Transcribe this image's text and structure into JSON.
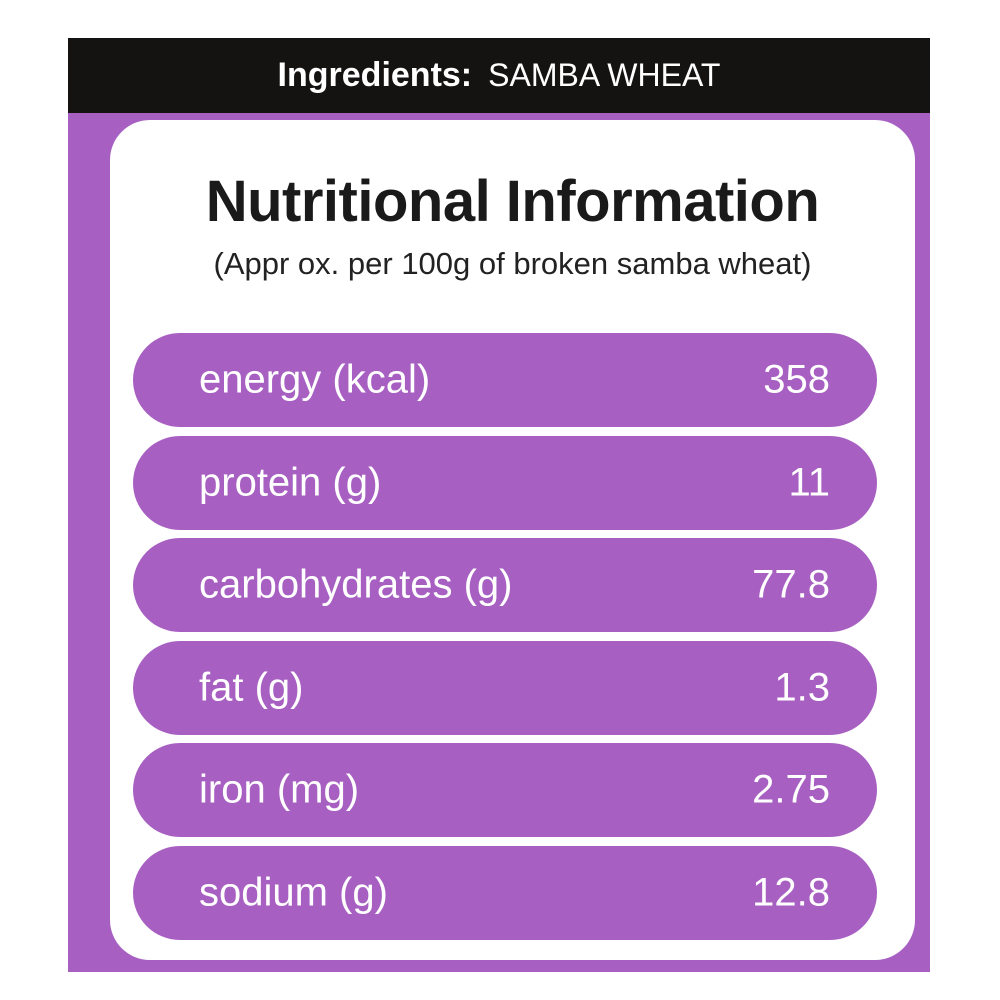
{
  "header": {
    "label": "Ingredients:",
    "value": "SAMBA WHEAT"
  },
  "title": "Nutritional Information",
  "subtitle": "(Appr ox. per 100g of broken samba wheat)",
  "table": {
    "rows": [
      [
        "energy (kcal)",
        "358"
      ],
      [
        "protein (g)",
        "11"
      ],
      [
        "carbohydrates (g)",
        "77.8"
      ],
      [
        "fat (g)",
        "1.3"
      ],
      [
        "iron (mg)",
        "2.75"
      ],
      [
        "sodium (g)",
        "12.8"
      ]
    ]
  }
}
